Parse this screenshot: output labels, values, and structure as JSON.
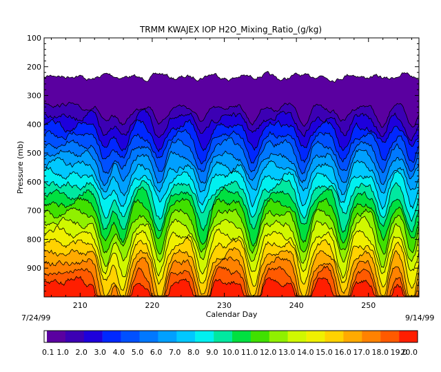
{
  "chart_data": {
    "type": "filled-contour",
    "title": "TRMM KWAJEX IOP H2O_Mixing_Ratio_(g/kg)",
    "xlabel": "Calendar Day",
    "ylabel": "Pressure (mb)",
    "xlim": [
      205,
      257
    ],
    "ylim": [
      1000,
      100
    ],
    "y_ticks": [
      100,
      200,
      300,
      400,
      500,
      600,
      700,
      800,
      900
    ],
    "x_ticks": [
      210,
      220,
      230,
      240,
      250
    ],
    "start_date": "7/24/99",
    "end_date": "9/14/99",
    "colorbar": {
      "levels": [
        "0.1",
        "1.0",
        "2.0",
        "3.0",
        "4.0",
        "5.0",
        "6.0",
        "7.0",
        "8.0",
        "9.0",
        "10.0",
        "11.0",
        "12.0",
        "13.0",
        "14.0",
        "15.0",
        "16.0",
        "17.0",
        "18.0",
        "19.0",
        "20.0"
      ],
      "colors": [
        "#5a00a0",
        "#3c00b4",
        "#1e00dc",
        "#0028ff",
        "#0050ff",
        "#0078ff",
        "#00a0ff",
        "#00c8ff",
        "#00f0f0",
        "#00e8a0",
        "#00e040",
        "#40e000",
        "#90f000",
        "#d0f800",
        "#f0f000",
        "#ffd200",
        "#ffaa00",
        "#ff8200",
        "#ff5a00",
        "#ff1e00"
      ]
    },
    "above_top_color": "#ffffff",
    "contour_line_color": "#000000"
  }
}
